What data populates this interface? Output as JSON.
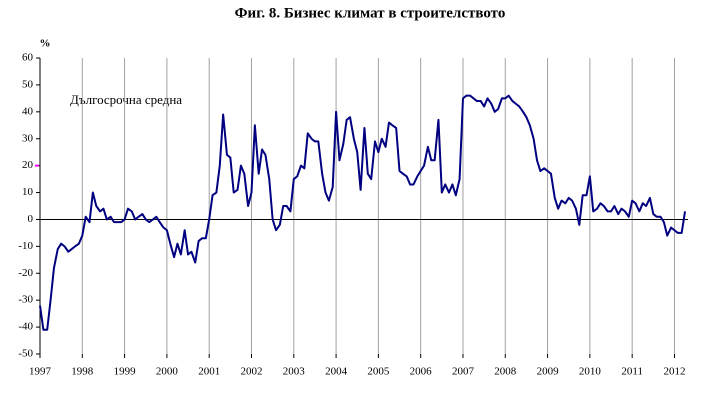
{
  "chart_data": {
    "type": "line",
    "title": "Фиг. 8. Бизнес климат в строителството",
    "y_unit": "%",
    "annotation": "Дългосрочна средна",
    "long_term_average": 20,
    "average_color": "#ff00ff",
    "color": "#000080",
    "grid": true,
    "xlim": [
      1997,
      2012.32
    ],
    "xticks": [
      1997,
      1998,
      1999,
      2000,
      2001,
      2002,
      2003,
      2004,
      2005,
      2006,
      2007,
      2008,
      2009,
      2010,
      2011,
      2012
    ],
    "ylim": [
      -50,
      60
    ],
    "yticks": [
      -50,
      -40,
      -30,
      -20,
      -10,
      0,
      10,
      20,
      30,
      40,
      50,
      60
    ],
    "x": [
      1997,
      1997.08,
      1997.17,
      1997.25,
      1997.33,
      1997.42,
      1997.5,
      1997.58,
      1997.67,
      1997.75,
      1997.83,
      1997.92,
      1998,
      1998.08,
      1998.17,
      1998.25,
      1998.33,
      1998.42,
      1998.5,
      1998.58,
      1998.67,
      1998.75,
      1998.83,
      1998.92,
      1999,
      1999.08,
      1999.17,
      1999.25,
      1999.33,
      1999.42,
      1999.5,
      1999.58,
      1999.67,
      1999.75,
      1999.83,
      1999.92,
      2000,
      2000.08,
      2000.17,
      2000.25,
      2000.33,
      2000.42,
      2000.5,
      2000.58,
      2000.67,
      2000.75,
      2000.83,
      2000.92,
      2001,
      2001.08,
      2001.17,
      2001.25,
      2001.33,
      2001.42,
      2001.5,
      2001.58,
      2001.67,
      2001.75,
      2001.83,
      2001.92,
      2002,
      2002.08,
      2002.17,
      2002.25,
      2002.33,
      2002.42,
      2002.5,
      2002.58,
      2002.67,
      2002.75,
      2002.83,
      2002.92,
      2003,
      2003.08,
      2003.17,
      2003.25,
      2003.33,
      2003.42,
      2003.5,
      2003.58,
      2003.67,
      2003.75,
      2003.83,
      2003.92,
      2004,
      2004.08,
      2004.17,
      2004.25,
      2004.33,
      2004.42,
      2004.5,
      2004.58,
      2004.67,
      2004.75,
      2004.83,
      2004.92,
      2005,
      2005.08,
      2005.17,
      2005.25,
      2005.33,
      2005.42,
      2005.5,
      2005.58,
      2005.67,
      2005.75,
      2005.83,
      2005.92,
      2006,
      2006.08,
      2006.17,
      2006.25,
      2006.33,
      2006.42,
      2006.5,
      2006.58,
      2006.67,
      2006.75,
      2006.83,
      2006.92,
      2007,
      2007.08,
      2007.17,
      2007.25,
      2007.33,
      2007.42,
      2007.5,
      2007.58,
      2007.67,
      2007.75,
      2007.83,
      2007.92,
      2008,
      2008.08,
      2008.17,
      2008.25,
      2008.33,
      2008.42,
      2008.5,
      2008.58,
      2008.67,
      2008.75,
      2008.83,
      2008.92,
      2009,
      2009.08,
      2009.17,
      2009.25,
      2009.33,
      2009.42,
      2009.5,
      2009.58,
      2009.67,
      2009.75,
      2009.83,
      2009.92,
      2010,
      2010.08,
      2010.17,
      2010.25,
      2010.33,
      2010.42,
      2010.5,
      2010.58,
      2010.67,
      2010.75,
      2010.83,
      2010.92,
      2011,
      2011.08,
      2011.17,
      2011.25,
      2011.33,
      2011.42,
      2011.5,
      2011.58,
      2011.67,
      2011.75,
      2011.83,
      2011.92,
      2012,
      2012.08,
      2012.17,
      2012.25
    ],
    "values": [
      -32,
      -41,
      -41,
      -30,
      -18,
      -11,
      -9,
      -10,
      -12,
      -11,
      -10,
      -9,
      -6,
      1,
      -1,
      10,
      5,
      3,
      4,
      0,
      1,
      -1,
      -1,
      -1,
      0,
      4,
      3,
      0,
      1,
      2,
      0,
      -1,
      0,
      1,
      -1,
      -3,
      -4,
      -9,
      -14,
      -9,
      -13,
      -4,
      -13,
      -12,
      -16,
      -8,
      -7,
      -7,
      0,
      9,
      10,
      20,
      39,
      24,
      23,
      10,
      11,
      20,
      17,
      5,
      10,
      35,
      17,
      26,
      24,
      15,
      0,
      -4,
      -2,
      5,
      5,
      3,
      15,
      16,
      20,
      19,
      32,
      30,
      29,
      29,
      17,
      10,
      7,
      12,
      40,
      22,
      28,
      37,
      38,
      30,
      25,
      11,
      34,
      17,
      15,
      29,
      25,
      30,
      27,
      36,
      35,
      34,
      18,
      17,
      16,
      13,
      13,
      16,
      18,
      20,
      27,
      22,
      22,
      37,
      10,
      13,
      10,
      13,
      9,
      15,
      45,
      46,
      46,
      45,
      44,
      44,
      42,
      45,
      43,
      40,
      41,
      45,
      45,
      46,
      44,
      43,
      42,
      40,
      38,
      35,
      30,
      22,
      18,
      19,
      18,
      17,
      8,
      4,
      7,
      6,
      8,
      7,
      4,
      -2,
      9,
      9,
      16,
      3,
      4,
      6,
      5,
      3,
      3,
      5,
      2,
      4,
      3,
      1,
      7,
      6,
      3,
      6,
      5,
      8,
      2,
      1,
      1,
      -1,
      -6,
      -3,
      -4,
      -5,
      -5,
      3
    ]
  }
}
